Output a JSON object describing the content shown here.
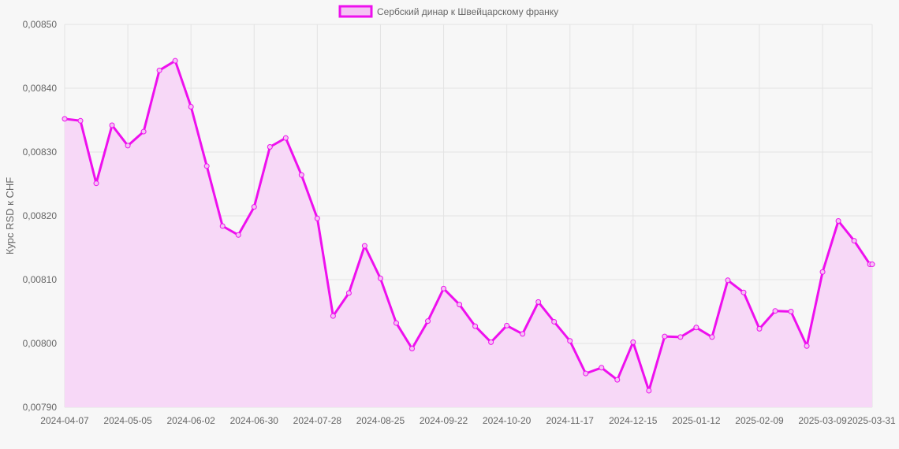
{
  "colors": {
    "line": "#ee10ee",
    "fill": "#f7d8f7",
    "point_fill": "#f3c4f3",
    "grid": "#e3e3e3",
    "text": "#666666",
    "background": "#f7f7f7"
  },
  "chart_data": {
    "type": "area",
    "title": "",
    "xlabel": "",
    "ylabel": "Курс RSD к CHF",
    "ylim": [
      0.0079,
      0.0085
    ],
    "yticks": [
      "0,00850",
      "0,00840",
      "0,00830",
      "0,00820",
      "0,00810",
      "0,00800",
      "0,00790"
    ],
    "ytick_values": [
      0.0085,
      0.0084,
      0.0083,
      0.0082,
      0.0081,
      0.008,
      0.0079
    ],
    "xticks": [
      "2024-04-07",
      "2024-05-05",
      "2024-06-02",
      "2024-06-30",
      "2024-07-28",
      "2024-08-25",
      "2024-09-22",
      "2024-10-20",
      "2024-11-17",
      "2024-12-15",
      "2025-01-12",
      "2025-02-09",
      "2025-03-09",
      "2025-03-31"
    ],
    "legend_position": "top-center",
    "grid": true,
    "series": [
      {
        "name": "Сербский динар к Швейцарскому франку",
        "x": [
          "2024-04-07",
          "2024-04-14",
          "2024-04-21",
          "2024-04-28",
          "2024-05-05",
          "2024-05-12",
          "2024-05-19",
          "2024-05-26",
          "2024-06-02",
          "2024-06-09",
          "2024-06-16",
          "2024-06-23",
          "2024-06-30",
          "2024-07-07",
          "2024-07-14",
          "2024-07-21",
          "2024-07-28",
          "2024-08-04",
          "2024-08-11",
          "2024-08-18",
          "2024-08-25",
          "2024-09-01",
          "2024-09-08",
          "2024-09-15",
          "2024-09-22",
          "2024-09-29",
          "2024-10-06",
          "2024-10-13",
          "2024-10-20",
          "2024-10-27",
          "2024-11-03",
          "2024-11-10",
          "2024-11-17",
          "2024-11-24",
          "2024-12-01",
          "2024-12-08",
          "2024-12-15",
          "2024-12-22",
          "2024-12-29",
          "2025-01-05",
          "2025-01-12",
          "2025-01-19",
          "2025-01-26",
          "2025-02-02",
          "2025-02-09",
          "2025-02-16",
          "2025-02-23",
          "2025-03-02",
          "2025-03-09",
          "2025-03-16",
          "2025-03-23",
          "2025-03-30",
          "2025-03-31"
        ],
        "values": [
          0.008352,
          0.008349,
          0.008251,
          0.008342,
          0.00831,
          0.008332,
          0.008428,
          0.008443,
          0.008371,
          0.008278,
          0.008184,
          0.00817,
          0.008214,
          0.008308,
          0.008322,
          0.008264,
          0.008196,
          0.008043,
          0.008079,
          0.008153,
          0.008102,
          0.008032,
          0.007992,
          0.008035,
          0.008086,
          0.008061,
          0.008027,
          0.008002,
          0.008028,
          0.008015,
          0.008065,
          0.008034,
          0.008004,
          0.007953,
          0.007962,
          0.007943,
          0.008002,
          0.007926,
          0.008011,
          0.00801,
          0.008025,
          0.00801,
          0.008099,
          0.00808,
          0.008023,
          0.008051,
          0.00805,
          0.007996,
          0.008112,
          0.008192,
          0.008161,
          0.008124,
          0.008124
        ]
      }
    ]
  }
}
